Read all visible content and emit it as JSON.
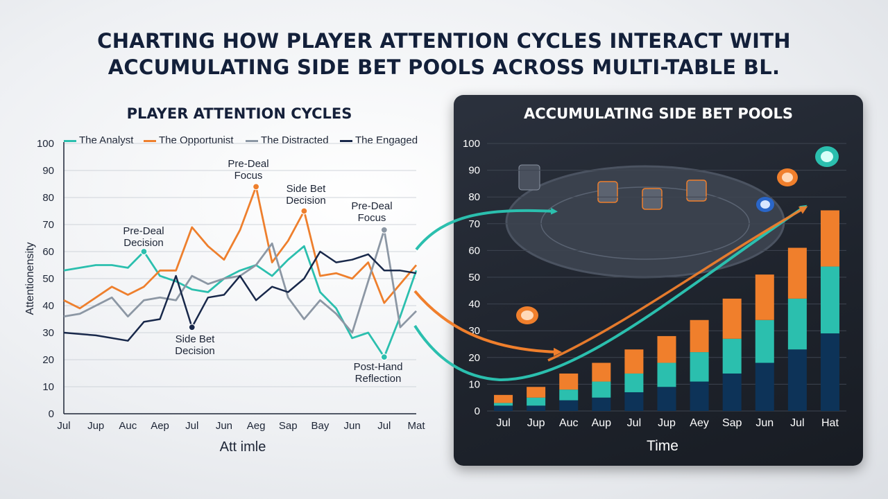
{
  "title": "CHARTING HOW PLAYER ATTENTION CYCLES INTERACT WITH ACCUMULATING SIDE BET POOLS ACROSS MULTI-TABLE BL.",
  "title_lines": [
    "CHARTING HOW PLAYER ATTENTION CYCLES INTERACT WITH",
    "ACCUMULATING SIDE BET POOLS ACROSS MULTI-TABLE BL."
  ],
  "chart_data": [
    {
      "type": "line",
      "title": "PLAYER ATTENTION CYCLES",
      "xlabel": "Att imle",
      "ylabel": "Attentionensity",
      "categories": [
        "Jul",
        "Jup",
        "Auc",
        "Aep",
        "Jul",
        "Jun",
        "Aeg",
        "Sap",
        "Bay",
        "Jun",
        "Jul",
        "Mat"
      ],
      "ylim": [
        0,
        100
      ],
      "yticks": [
        0,
        10,
        20,
        30,
        40,
        50,
        60,
        70,
        80,
        90,
        100
      ],
      "grid": true,
      "legend_position": "top",
      "series": [
        {
          "name": "The Analyst",
          "color": "#2bbfae",
          "x": [
            0,
            0.5,
            1,
            1.5,
            2,
            2.5,
            3,
            3.5,
            4,
            4.5,
            5,
            5.5,
            6,
            6.5,
            7,
            7.5,
            8,
            8.5,
            9,
            9.5,
            10,
            10.5,
            11
          ],
          "y": [
            53,
            54,
            55,
            55,
            54,
            60,
            51,
            49,
            46,
            45,
            50,
            53,
            55,
            51,
            57,
            62,
            45,
            39,
            28,
            30,
            21,
            36,
            53
          ]
        },
        {
          "name": "The Opportunist",
          "color": "#ee7f2d",
          "x": [
            0,
            0.5,
            1,
            1.5,
            2,
            2.5,
            3,
            3.5,
            4,
            4.5,
            5,
            5.5,
            6,
            6.5,
            7,
            7.5,
            8,
            8.5,
            9,
            9.5,
            10,
            10.5,
            11
          ],
          "y": [
            42,
            39,
            43,
            47,
            44,
            47,
            53,
            53,
            69,
            62,
            57,
            68,
            84,
            56,
            64,
            75,
            51,
            52,
            50,
            56,
            41,
            48,
            55
          ]
        },
        {
          "name": "The Distracted",
          "color": "#8c97a4",
          "x": [
            0,
            0.5,
            1,
            1.5,
            2,
            2.5,
            3,
            3.5,
            4,
            4.5,
            5,
            5.5,
            6,
            6.5,
            7,
            7.5,
            8,
            8.5,
            9,
            9.5,
            10,
            10.5,
            11
          ],
          "y": [
            36,
            37,
            40,
            43,
            36,
            42,
            43,
            42,
            51,
            48,
            50,
            51,
            55,
            63,
            43,
            35,
            42,
            37,
            30,
            49,
            68,
            32,
            38
          ]
        },
        {
          "name": "The Engaged",
          "color": "#18284a",
          "x": [
            0,
            1,
            2,
            2.5,
            3,
            3.5,
            4,
            4.5,
            5,
            5.5,
            6,
            6.5,
            7,
            7.5,
            8,
            8.5,
            9,
            9.5,
            10,
            10.5,
            11
          ],
          "y": [
            30,
            29,
            27,
            34,
            35,
            51,
            32,
            43,
            44,
            51,
            42,
            47,
            45,
            50,
            60,
            56,
            57,
            59,
            53,
            53,
            52
          ]
        }
      ],
      "annotations": [
        {
          "text": "Pre-Deal Decision",
          "x": 2.5,
          "y": 60,
          "series": "The Analyst"
        },
        {
          "text": "Pre-Deal Focus",
          "x": 6,
          "y": 84,
          "series": "The Opportunist"
        },
        {
          "text": "Side Bet Decision",
          "x": 7.5,
          "y": 75,
          "series": "The Opportunist"
        },
        {
          "text": "Pre-Deal Focus",
          "x": 10,
          "y": 68,
          "series": "The Distracted"
        },
        {
          "text": "Side Bet Decision",
          "x": 4,
          "y": 32,
          "series": "The Engaged"
        },
        {
          "text": "Post-Hand Reflection",
          "x": 10,
          "y": 21,
          "series": "The Analyst"
        }
      ]
    },
    {
      "type": "bar",
      "title": "ACCUMULATING SIDE BET POOLS",
      "xlabel": "Time",
      "ylabel": "",
      "categories": [
        "Jul",
        "Jup",
        "Auc",
        "Aup",
        "Jul",
        "Jup",
        "Aey",
        "Sap",
        "Jun",
        "Jul",
        "Hat"
      ],
      "ylim": [
        0,
        100
      ],
      "yticks": [
        0,
        10,
        20,
        30,
        40,
        50,
        60,
        70,
        80,
        90,
        100
      ],
      "stacked": true,
      "series": [
        {
          "name": "",
          "color": "#0d3358",
          "values": [
            2,
            2,
            4,
            5,
            7,
            9,
            11,
            14,
            18,
            23,
            29
          ]
        },
        {
          "name": "",
          "color": "#2bbfae",
          "values": [
            1,
            3,
            4,
            6,
            7,
            9,
            11,
            13,
            16,
            19,
            25
          ]
        },
        {
          "name": "",
          "color": "#f07f2c",
          "values": [
            3,
            4,
            6,
            7,
            9,
            10,
            12,
            15,
            17,
            19,
            21
          ]
        }
      ]
    }
  ]
}
